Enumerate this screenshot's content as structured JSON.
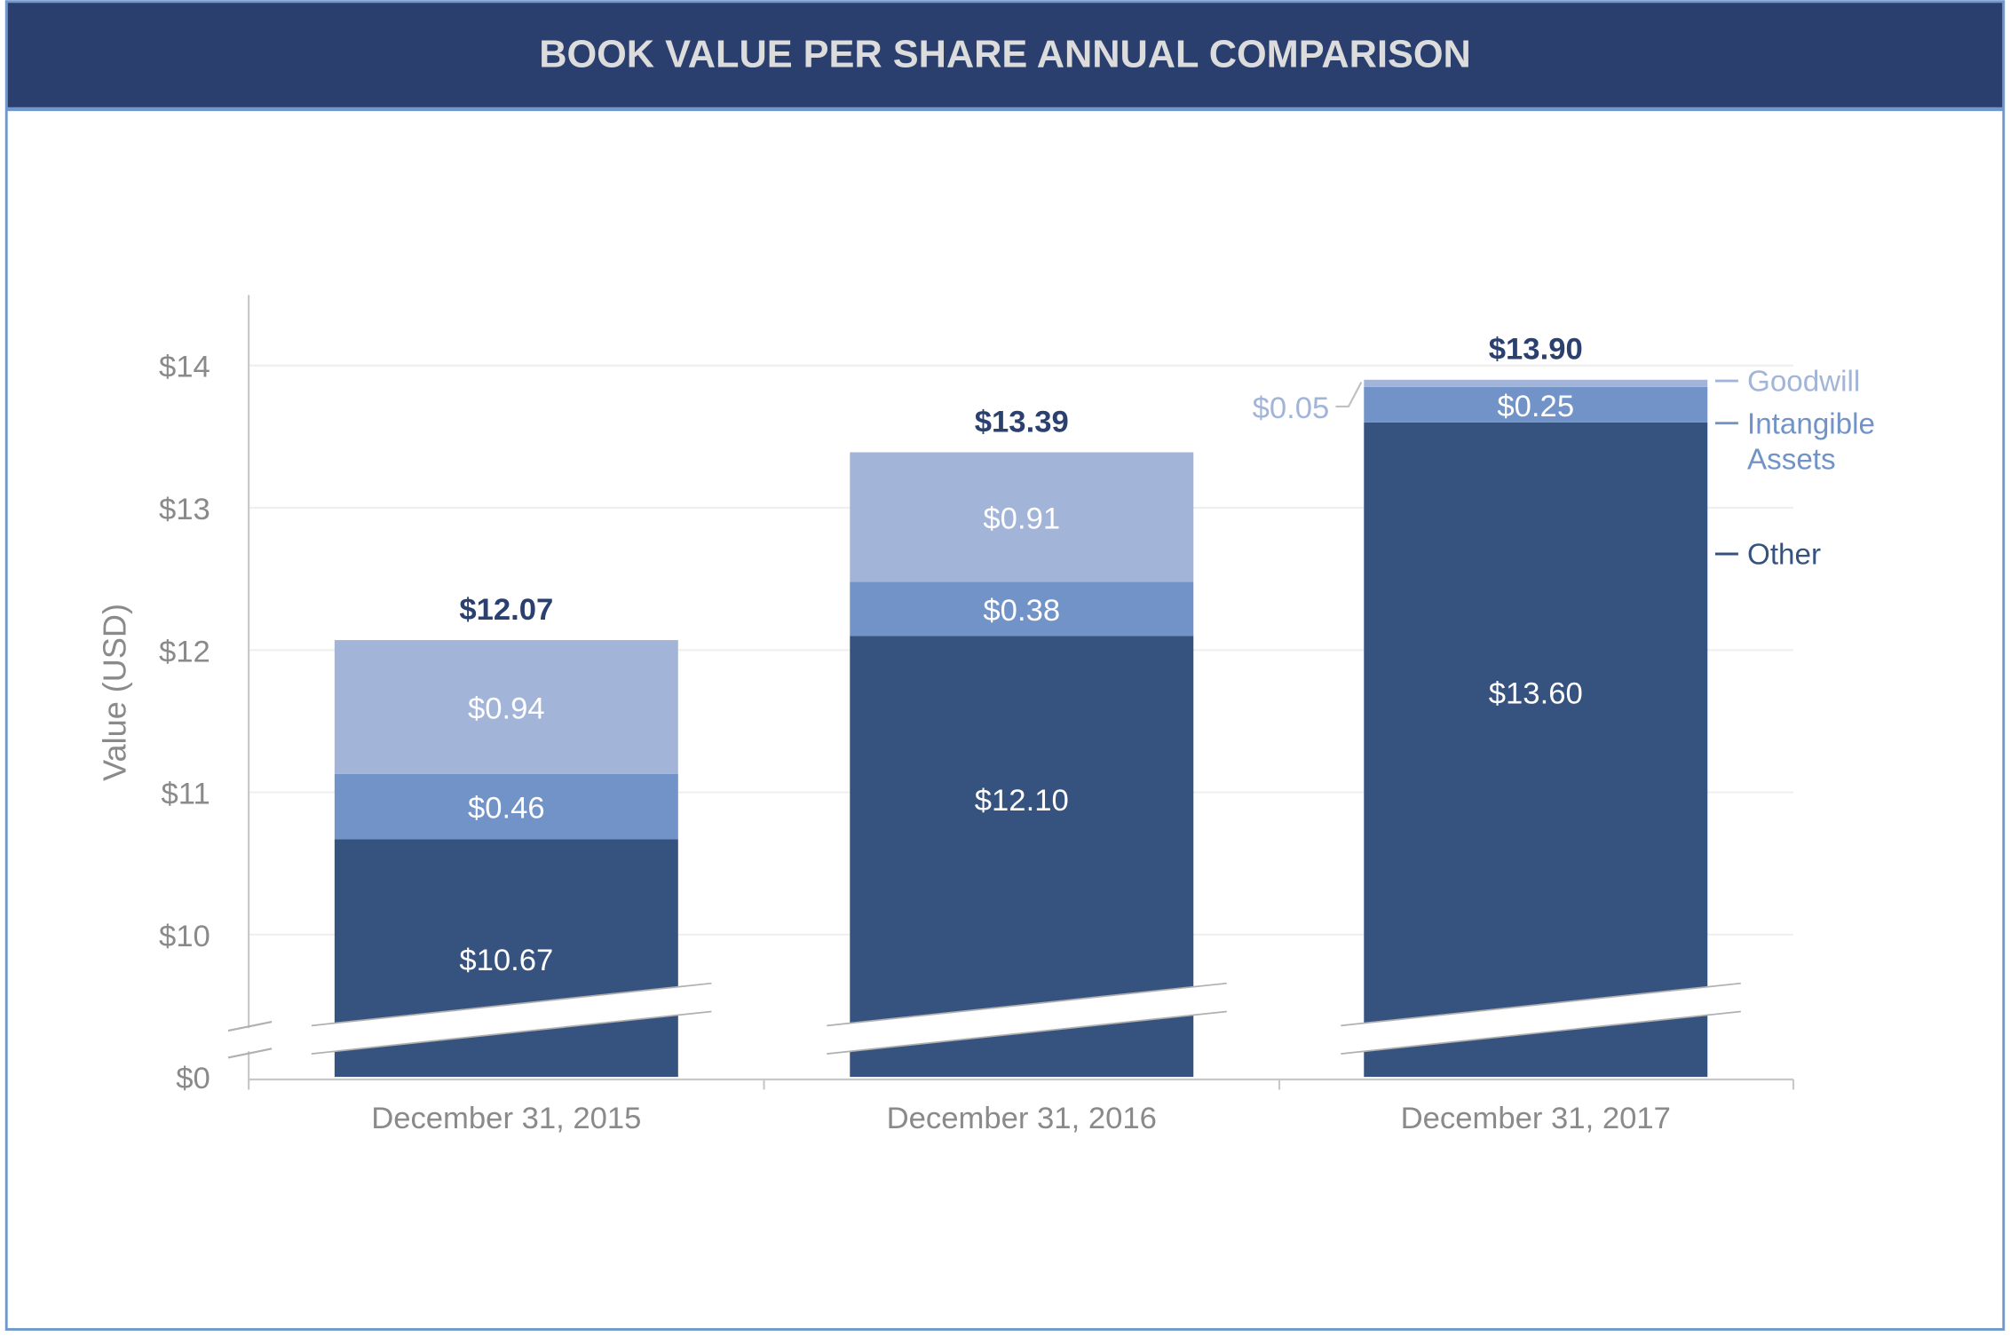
{
  "title": "BOOK VALUE PER SHARE ANNUAL COMPARISON",
  "colors": {
    "header_bg": "#2a3f6e",
    "border": "#7098cc",
    "other": "#36537f",
    "intangible": "#7293c7",
    "goodwill": "#a2b5d8",
    "total_label": "#2a4170",
    "axis_text": "#8a8a8a"
  },
  "chart_data": {
    "type": "bar",
    "stacked": true,
    "title": "BOOK VALUE PER SHARE ANNUAL COMPARISON",
    "xlabel": "",
    "ylabel": "Value (USD)",
    "categories": [
      "December 31, 2015",
      "December 31, 2016",
      "December 31, 2017"
    ],
    "series": [
      {
        "name": "Other",
        "values": [
          10.67,
          12.1,
          13.6
        ],
        "labels": [
          "$10.67",
          "$12.10",
          "$13.60"
        ]
      },
      {
        "name": "Intangible Assets",
        "values": [
          0.46,
          0.38,
          0.25
        ],
        "labels": [
          "$0.46",
          "$0.38",
          "$0.25"
        ]
      },
      {
        "name": "Goodwill",
        "values": [
          0.94,
          0.91,
          0.05
        ],
        "labels": [
          "$0.94",
          "$0.91",
          "$0.05"
        ]
      }
    ],
    "totals": [
      12.07,
      13.39,
      13.9
    ],
    "total_labels": [
      "$12.07",
      "$13.39",
      "$13.90"
    ],
    "y_ticks": [
      0,
      10,
      11,
      12,
      13,
      14
    ],
    "y_tick_labels": [
      "$0",
      "$10",
      "$11",
      "$12",
      "$13",
      "$14"
    ],
    "y_axis_break": true,
    "grid": true,
    "legend": "right"
  }
}
